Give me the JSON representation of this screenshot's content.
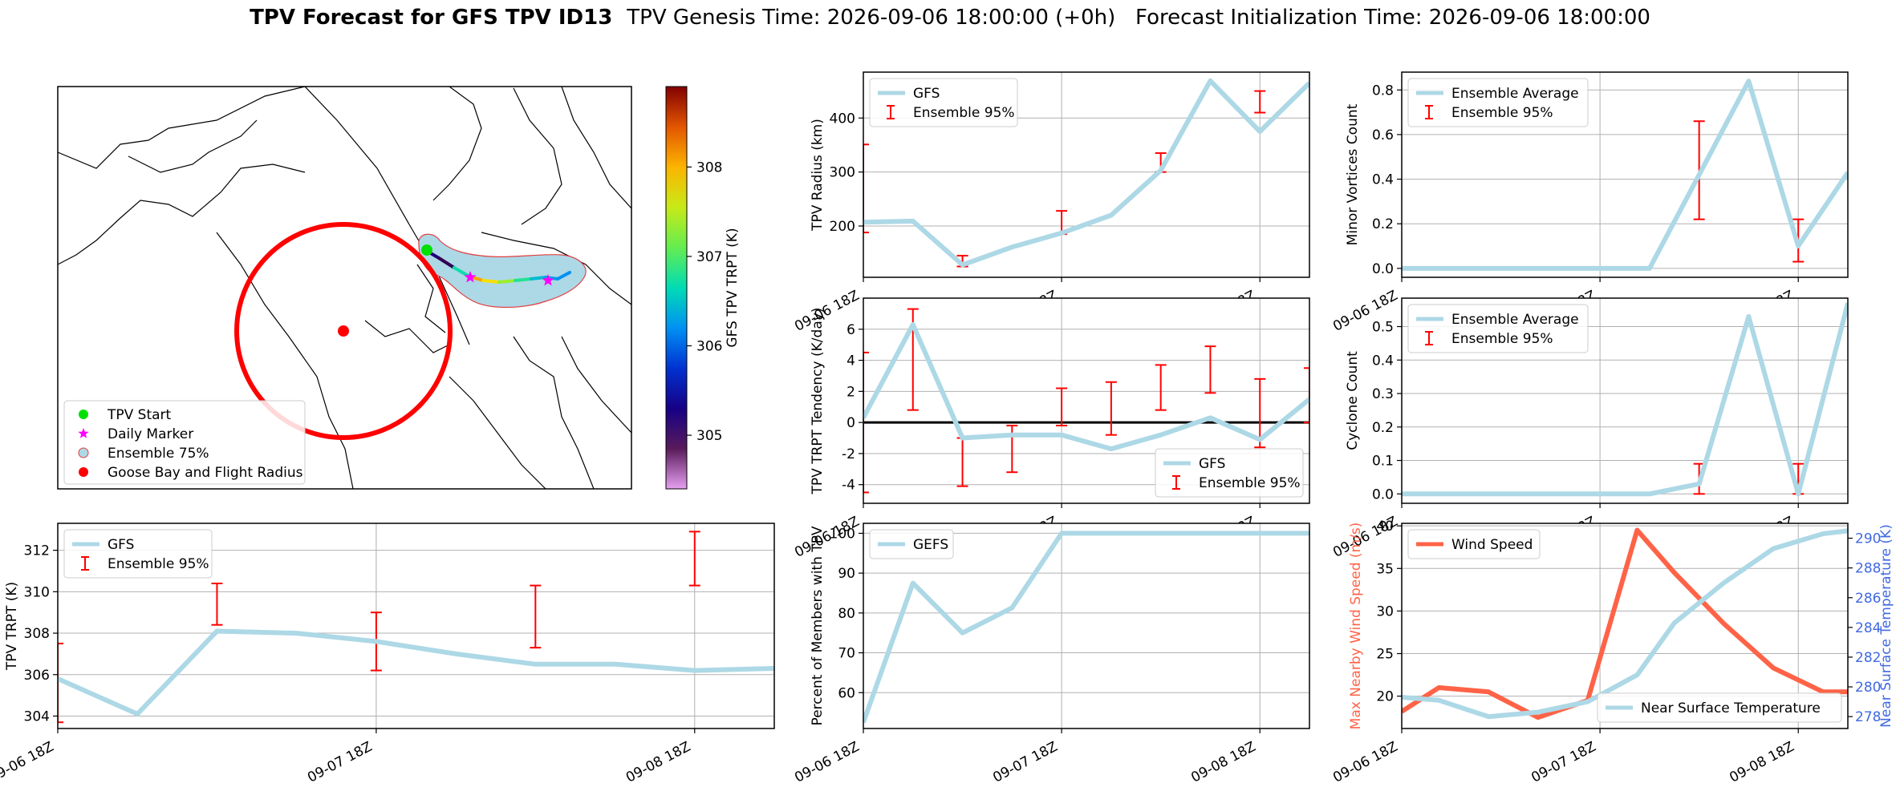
{
  "header": {
    "title_bold": "TPV Forecast for GFS TPV ID13",
    "title_rest": "TPV Genesis Time: 2026-09-06 18:00:00 (+0h)   Forecast Initialization Time: 2026-09-06 18:00:00"
  },
  "colors": {
    "light_blue": "#add8e6",
    "error_red": "#ff0000",
    "wind_orange": "#ff6347",
    "temp_blue": "#4169e1",
    "grid": "#b0b0b0"
  },
  "chart_data": [
    {
      "id": "map",
      "type": "map",
      "legend": [
        {
          "label": "TPV Start",
          "marker": "green-circle"
        },
        {
          "label": "Daily Marker",
          "marker": "magenta-star"
        },
        {
          "label": "Ensemble 75%",
          "marker": "lightblue-circle"
        },
        {
          "label": "Goose Bay and Flight Radius",
          "marker": "red-circle"
        }
      ],
      "colorbar": {
        "label": "GFS TPV TRPT (K)",
        "ticks": [
          305,
          306,
          307,
          308
        ],
        "range": [
          304.4,
          308.9
        ]
      },
      "track": [
        {
          "t": 0,
          "trpt": 305.6
        },
        {
          "t": 1,
          "trpt": 304.9
        },
        {
          "t": 2,
          "trpt": 305.2
        },
        {
          "t": 3,
          "trpt": 308.2
        },
        {
          "t": 4,
          "trpt": 308.0
        },
        {
          "t": 5,
          "trpt": 307.6
        },
        {
          "t": 6,
          "trpt": 307.1
        },
        {
          "t": 7,
          "trpt": 306.5
        },
        {
          "t": 8,
          "trpt": 306.4
        },
        {
          "t": 9,
          "trpt": 306.2
        },
        {
          "t": 10,
          "trpt": 306.2
        }
      ]
    },
    {
      "id": "trpt",
      "type": "line",
      "ylabel": "TPV TRPT (K)",
      "xlim": [
        0,
        9
      ],
      "ylim": [
        303.4,
        313.3
      ],
      "yticks": [
        304,
        306,
        308,
        310,
        312
      ],
      "xticks": [
        {
          "x": 0,
          "label": "09-06 18Z"
        },
        {
          "x": 4,
          "label": "09-07 18Z"
        },
        {
          "x": 8,
          "label": "09-08 18Z"
        }
      ],
      "legend": [
        {
          "label": "GFS",
          "kind": "line"
        },
        {
          "label": "Ensemble 95%",
          "kind": "errorbar"
        }
      ],
      "legend_loc": "upper left",
      "series": [
        {
          "name": "GFS",
          "x": [
            0,
            1,
            2,
            3,
            4,
            5,
            6,
            7,
            8,
            9
          ],
          "y": [
            305.8,
            304.1,
            308.1,
            308.0,
            307.6,
            307.0,
            306.5,
            306.5,
            306.2,
            306.3
          ]
        }
      ],
      "errorbars": [
        {
          "x": 0,
          "lo": 303.7,
          "hi": 307.5
        },
        {
          "x": 2,
          "lo": 308.4,
          "hi": 310.4
        },
        {
          "x": 4,
          "lo": 306.2,
          "hi": 309.0
        },
        {
          "x": 6,
          "lo": 307.3,
          "hi": 310.3
        },
        {
          "x": 8,
          "lo": 310.3,
          "hi": 312.9
        }
      ]
    },
    {
      "id": "radius",
      "type": "line",
      "ylabel": "TPV Radius (km)",
      "xlim": [
        0,
        9
      ],
      "ylim": [
        105,
        485
      ],
      "yticks": [
        200,
        300,
        400
      ],
      "xticks": [
        {
          "x": 0,
          "label": "09-06 18Z"
        },
        {
          "x": 4,
          "label": "09-07 18Z"
        },
        {
          "x": 8,
          "label": "09-08 18Z"
        }
      ],
      "legend": [
        {
          "label": "GFS",
          "kind": "line"
        },
        {
          "label": "Ensemble 95%",
          "kind": "errorbar"
        }
      ],
      "legend_loc": "upper left",
      "series": [
        {
          "name": "GFS",
          "x": [
            0,
            1,
            2,
            3,
            4,
            5,
            6,
            7,
            8,
            9
          ],
          "y": [
            207,
            209,
            128,
            161,
            187,
            220,
            303,
            469,
            375,
            465
          ]
        }
      ],
      "errorbars": [
        {
          "x": 0,
          "lo": 188,
          "hi": 351
        },
        {
          "x": 2,
          "lo": 125,
          "hi": 145
        },
        {
          "x": 4,
          "lo": 185,
          "hi": 228
        },
        {
          "x": 6,
          "lo": 300,
          "hi": 335
        },
        {
          "x": 8,
          "lo": 410,
          "hi": 450
        }
      ]
    },
    {
      "id": "tendency",
      "type": "line",
      "ylabel": "TPV TRPT Tendency (K/day)",
      "xlim": [
        0,
        9
      ],
      "ylim": [
        -5.2,
        8.0
      ],
      "yticks": [
        -4,
        -2,
        0,
        2,
        4,
        6
      ],
      "zero_line": true,
      "xticks": [
        {
          "x": 0,
          "label": "09-06 18Z"
        },
        {
          "x": 4,
          "label": "09-07 18Z"
        },
        {
          "x": 8,
          "label": "09-08 18Z"
        }
      ],
      "legend": [
        {
          "label": "GFS",
          "kind": "line"
        },
        {
          "label": "Ensemble 95%",
          "kind": "errorbar"
        }
      ],
      "legend_loc": "lower right",
      "series": [
        {
          "name": "GFS",
          "x": [
            0,
            1,
            2,
            3,
            4,
            5,
            6,
            7,
            8,
            9
          ],
          "y": [
            0.3,
            6.3,
            -1.0,
            -0.8,
            -0.8,
            -1.7,
            -0.8,
            0.3,
            -1.1,
            1.5
          ]
        }
      ],
      "errorbars": [
        {
          "x": 0,
          "lo": -4.5,
          "hi": 4.5
        },
        {
          "x": 1,
          "lo": 0.8,
          "hi": 7.3
        },
        {
          "x": 2,
          "lo": -4.1,
          "hi": -1.0
        },
        {
          "x": 3,
          "lo": -3.2,
          "hi": -0.2
        },
        {
          "x": 4,
          "lo": -0.2,
          "hi": 2.2
        },
        {
          "x": 5,
          "lo": -0.8,
          "hi": 2.6
        },
        {
          "x": 6,
          "lo": 0.8,
          "hi": 3.7
        },
        {
          "x": 7,
          "lo": 1.9,
          "hi": 4.9
        },
        {
          "x": 8,
          "lo": -1.6,
          "hi": 2.8
        },
        {
          "x": 9,
          "lo": 0.0,
          "hi": 3.5
        }
      ]
    },
    {
      "id": "percent",
      "type": "line",
      "ylabel": "Percent of Members with TPV",
      "xlim": [
        0,
        9
      ],
      "ylim": [
        51,
        102.5
      ],
      "yticks": [
        60,
        70,
        80,
        90,
        100
      ],
      "xticks": [
        {
          "x": 0,
          "label": "09-06 18Z"
        },
        {
          "x": 4,
          "label": "09-07 18Z"
        },
        {
          "x": 8,
          "label": "09-08 18Z"
        }
      ],
      "legend": [
        {
          "label": "GEFS",
          "kind": "line"
        }
      ],
      "legend_loc": "upper left",
      "series": [
        {
          "name": "GEFS",
          "x": [
            0,
            1,
            2,
            3,
            4,
            5,
            6,
            7,
            8,
            9
          ],
          "y": [
            52.5,
            87.5,
            75,
            81.3,
            100,
            100,
            100,
            100,
            100,
            100
          ]
        }
      ],
      "errorbars": []
    },
    {
      "id": "minor",
      "type": "line",
      "ylabel": "Minor Vortices Count",
      "xlim": [
        0,
        9
      ],
      "ylim": [
        -0.04,
        0.88
      ],
      "yticks": [
        0.0,
        0.2,
        0.4,
        0.6,
        0.8
      ],
      "decimals": 1,
      "xticks": [
        {
          "x": 0,
          "label": "09-06 18Z"
        },
        {
          "x": 4,
          "label": "09-07 18Z"
        },
        {
          "x": 8,
          "label": "09-08 18Z"
        }
      ],
      "legend": [
        {
          "label": "Ensemble Average",
          "kind": "line"
        },
        {
          "label": "Ensemble 95%",
          "kind": "errorbar"
        }
      ],
      "legend_loc": "upper left",
      "series": [
        {
          "name": "Ensemble Average",
          "x": [
            0,
            1,
            2,
            3,
            4,
            5,
            6,
            7,
            8,
            9
          ],
          "y": [
            0,
            0,
            0,
            0,
            0,
            0,
            0.42,
            0.84,
            0.1,
            0.43
          ]
        }
      ],
      "errorbars": [
        {
          "x": 0,
          "lo": 0,
          "hi": 0
        },
        {
          "x": 2,
          "lo": 0,
          "hi": 0
        },
        {
          "x": 4,
          "lo": 0,
          "hi": 0
        },
        {
          "x": 6,
          "lo": 0.22,
          "hi": 0.66
        },
        {
          "x": 8,
          "lo": 0.03,
          "hi": 0.22
        }
      ]
    },
    {
      "id": "cyclone",
      "type": "line",
      "ylabel": "Cyclone Count",
      "xlim": [
        0,
        9
      ],
      "ylim": [
        -0.028,
        0.585
      ],
      "yticks": [
        0.0,
        0.1,
        0.2,
        0.3,
        0.4,
        0.5
      ],
      "decimals": 1,
      "xticks": [
        {
          "x": 0,
          "label": "09-06 18Z"
        },
        {
          "x": 4,
          "label": "09-07 18Z"
        },
        {
          "x": 8,
          "label": "09-08 18Z"
        }
      ],
      "legend": [
        {
          "label": "Ensemble Average",
          "kind": "line"
        },
        {
          "label": "Ensemble 95%",
          "kind": "errorbar"
        }
      ],
      "legend_loc": "upper left",
      "series": [
        {
          "name": "Ensemble Average",
          "x": [
            0,
            1,
            2,
            3,
            4,
            5,
            6,
            7,
            8,
            9
          ],
          "y": [
            0,
            0,
            0,
            0,
            0,
            0,
            0.03,
            0.53,
            0,
            0.57
          ]
        }
      ],
      "errorbars": [
        {
          "x": 0,
          "lo": 0,
          "hi": 0
        },
        {
          "x": 2,
          "lo": 0,
          "hi": 0
        },
        {
          "x": 4,
          "lo": 0,
          "hi": 0
        },
        {
          "x": 6,
          "lo": 0,
          "hi": 0.09
        },
        {
          "x": 8,
          "lo": 0,
          "hi": 0.09
        }
      ]
    },
    {
      "id": "wind",
      "type": "line",
      "ylabel": "Max Nearby Wind Speed (m/s)",
      "ylabel2": "Near Surface Temperature (K)",
      "xlim": [
        0,
        9
      ],
      "ylim": [
        16.2,
        40.3
      ],
      "yticks": [
        20,
        25,
        30,
        35,
        40
      ],
      "ylim2": [
        277.2,
        291.0
      ],
      "yticks2": [
        278,
        280,
        282,
        284,
        286,
        288,
        290
      ],
      "xticks": [
        {
          "x": 0,
          "label": "09-06 18Z"
        },
        {
          "x": 4,
          "label": "09-07 18Z"
        },
        {
          "x": 8,
          "label": "09-08 18Z"
        }
      ],
      "legend": [
        {
          "label": "Wind Speed",
          "kind": "line"
        }
      ],
      "legend2": [
        {
          "label": "Near Surface Temperature",
          "kind": "line"
        }
      ],
      "series": [
        {
          "name": "Wind Speed",
          "x": [
            0,
            0.75,
            1.75,
            2.75,
            3.75,
            4.75,
            5.5,
            6.5,
            7.5,
            8.5,
            9
          ],
          "y": [
            18.2,
            21.0,
            20.5,
            17.5,
            19.5,
            39.5,
            34.5,
            28.5,
            23.3,
            20.5,
            20.5
          ]
        }
      ],
      "series2": [
        {
          "name": "Near Surface Temperature",
          "x": [
            0,
            0.75,
            1.75,
            2.75,
            3.75,
            4.75,
            5.5,
            6.5,
            7.5,
            8.5,
            9
          ],
          "y": [
            279.3,
            279.1,
            278.0,
            278.3,
            279.0,
            280.8,
            284.3,
            287.0,
            289.3,
            290.3,
            290.5
          ]
        }
      ]
    }
  ]
}
